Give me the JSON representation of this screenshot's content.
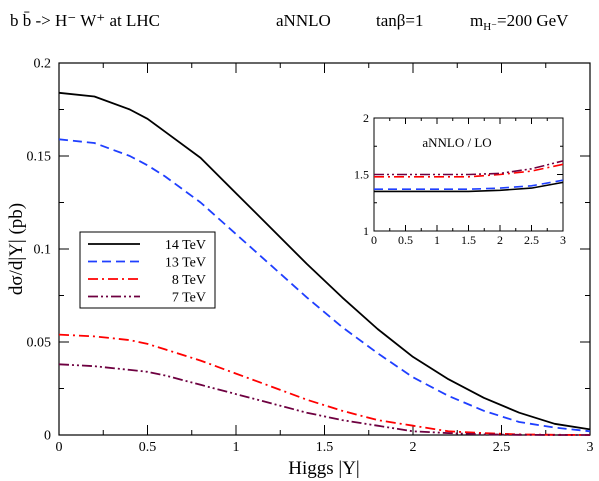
{
  "header": {
    "process": "b b̄ -> H⁻ W⁺  at LHC",
    "order": "aNNLO",
    "tanbeta": "tanβ=1",
    "mass": "m",
    "mass_sub": "H⁻",
    "mass_value": "=200 GeV"
  },
  "chart_data": [
    {
      "id": "main",
      "type": "line",
      "xlabel": "Higgs  |Y|",
      "ylabel": "dσ/d|Y| (pb)",
      "xlim": [
        0,
        3
      ],
      "ylim": [
        0,
        0.2
      ],
      "x_ticks": [
        0,
        0.5,
        1,
        1.5,
        2,
        2.5,
        3
      ],
      "x_tick_labels": [
        "0",
        "0.5",
        "1",
        "1.5",
        "2",
        "2.5",
        "3"
      ],
      "y_ticks": [
        0,
        0.05,
        0.1,
        0.15,
        0.2
      ],
      "y_tick_labels": [
        "0",
        "0.05",
        "0.1",
        "0.15",
        "0.2"
      ],
      "grid": false,
      "legend_position": "middle-left",
      "x": [
        0,
        0.2,
        0.4,
        0.5,
        0.6,
        0.8,
        1.0,
        1.2,
        1.4,
        1.6,
        1.8,
        2.0,
        2.2,
        2.4,
        2.6,
        2.8,
        3.0
      ],
      "series": [
        {
          "name": "14 TeV",
          "color": "#000000",
          "dash": "solid",
          "values": [
            0.184,
            0.182,
            0.175,
            0.17,
            0.163,
            0.149,
            0.13,
            0.111,
            0.092,
            0.074,
            0.057,
            0.042,
            0.03,
            0.02,
            0.012,
            0.006,
            0.003
          ]
        },
        {
          "name": "13 TeV",
          "color": "#1f3fff",
          "dash": "dashed",
          "values": [
            0.159,
            0.157,
            0.15,
            0.145,
            0.139,
            0.125,
            0.108,
            0.091,
            0.074,
            0.058,
            0.044,
            0.031,
            0.021,
            0.013,
            0.007,
            0.004,
            0.002
          ]
        },
        {
          "name": "8 TeV",
          "color": "#ff0000",
          "dash": "dash-dot",
          "values": [
            0.054,
            0.053,
            0.051,
            0.049,
            0.046,
            0.04,
            0.033,
            0.026,
            0.019,
            0.013,
            0.008,
            0.005,
            0.002,
            0.001,
            0.0003,
            0.0001,
            0.0
          ]
        },
        {
          "name": "7 TeV",
          "color": "#6e0040",
          "dash": "dash-dot-dot",
          "values": [
            0.038,
            0.037,
            0.035,
            0.034,
            0.032,
            0.027,
            0.022,
            0.017,
            0.012,
            0.008,
            0.005,
            0.002,
            0.001,
            0.0003,
            0.0001,
            0.0,
            0.0
          ]
        }
      ]
    },
    {
      "id": "inset",
      "type": "line",
      "title": "aNNLO / LO",
      "xlim": [
        0,
        3
      ],
      "ylim": [
        1,
        2
      ],
      "x_ticks": [
        0,
        0.5,
        1,
        1.5,
        2,
        2.5,
        3
      ],
      "x_tick_labels": [
        "0",
        "0.5",
        "1",
        "1.5",
        "2",
        "2.5",
        "3"
      ],
      "y_ticks": [
        1,
        1.5,
        2
      ],
      "y_tick_labels": [
        "1",
        "1.5",
        "2"
      ],
      "grid": false,
      "x": [
        0,
        0.5,
        1.0,
        1.5,
        2.0,
        2.5,
        3.0
      ],
      "series": [
        {
          "color": "#000000",
          "dash": "solid",
          "values": [
            1.35,
            1.35,
            1.35,
            1.35,
            1.36,
            1.38,
            1.43
          ]
        },
        {
          "color": "#1f3fff",
          "dash": "dashed",
          "values": [
            1.37,
            1.37,
            1.37,
            1.37,
            1.38,
            1.4,
            1.45
          ]
        },
        {
          "color": "#ff0000",
          "dash": "dash-dot",
          "values": [
            1.48,
            1.48,
            1.48,
            1.48,
            1.5,
            1.53,
            1.59
          ]
        },
        {
          "color": "#6e0040",
          "dash": "dash-dot-dot",
          "values": [
            1.5,
            1.5,
            1.5,
            1.5,
            1.51,
            1.55,
            1.62
          ]
        }
      ]
    }
  ]
}
